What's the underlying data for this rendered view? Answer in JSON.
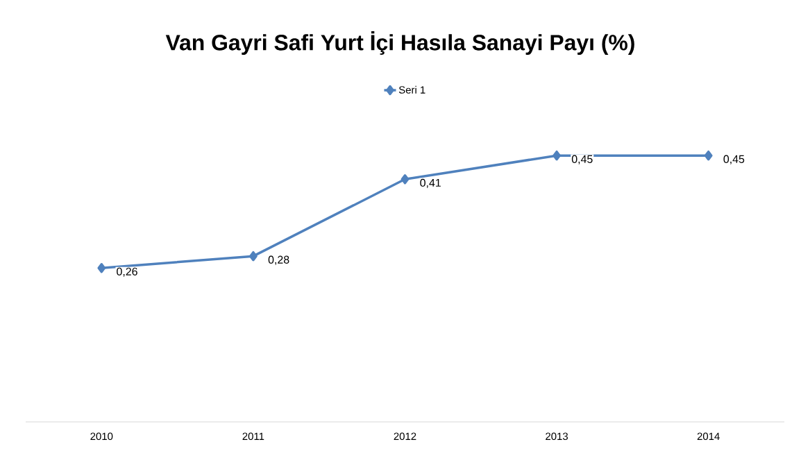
{
  "chart_data": {
    "type": "line",
    "title": "Van Gayri Safi Yurt İçi Hasıla Sanayi Payı (%)",
    "categories": [
      "2010",
      "2011",
      "2012",
      "2013",
      "2014"
    ],
    "series": [
      {
        "name": "Seri 1",
        "color": "#4f81bd",
        "values": [
          0.26,
          0.28,
          0.41,
          0.45,
          0.45
        ],
        "value_labels": [
          "0,26",
          "0,28",
          "0,41",
          "0,45",
          "0,45"
        ]
      }
    ],
    "tick_labels": "x",
    "legend": "top",
    "marker": "diamond",
    "line_style": "solid"
  }
}
